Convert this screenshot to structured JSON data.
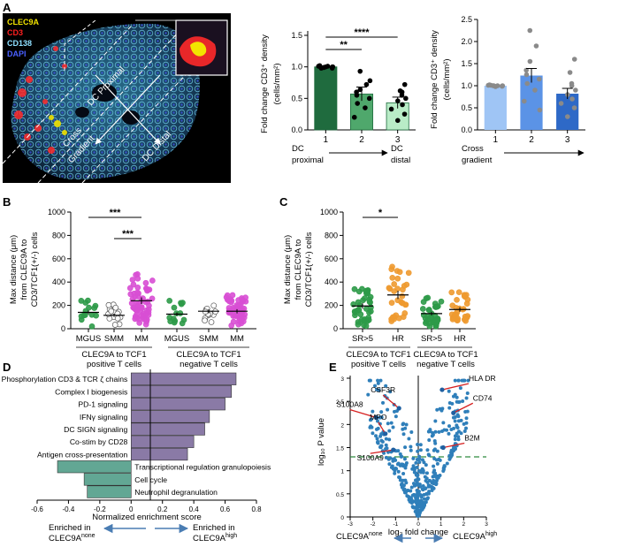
{
  "panel_labels": {
    "A": "A",
    "B": "B",
    "C": "C",
    "D": "D",
    "E": "E"
  },
  "micrograph": {
    "legend": [
      {
        "label": "CLEC9A",
        "color": "#f2e300"
      },
      {
        "label": "CD3",
        "color": "#ff2020"
      },
      {
        "label": "CD138",
        "color": "#8fe0ff"
      },
      {
        "label": "DAPI",
        "color": "#4a60ff"
      }
    ],
    "regions": {
      "proximal": "DC Proximal",
      "distal": "DC Distal",
      "cross": "Cross",
      "gradient": "Gradient"
    }
  },
  "colors": {
    "dark_green": "#1f6b3e",
    "mid_green": "#4fa86c",
    "light_green": "#b9ecc7",
    "light_blue": "#9fc5f5",
    "mid_blue": "#5b93e6",
    "dark_blue": "#2e69c7",
    "green_dot": "#2d9a48",
    "orange_dot": "#ee9a30",
    "magenta_dot": "#d84fd4",
    "purple_bar": "#8a7aa6",
    "teal_bar": "#62a794",
    "volcano_dot": "#2f7fba"
  },
  "chart_data": [
    {
      "id": "A-middle",
      "type": "bar",
      "ylabel": "Fold change CD3⁺ density",
      "ylabel2": "(cells/mm²)",
      "categories": [
        "1",
        "2",
        "3"
      ],
      "values": [
        1.0,
        0.57,
        0.43
      ],
      "sem": [
        0.0,
        0.11,
        0.09
      ],
      "ylim": [
        0,
        1.5
      ],
      "yticks": [
        "0.0",
        "0.5",
        "1.0",
        "1.5"
      ],
      "xnotes": {
        "left": "DC",
        "left2": "proximal",
        "right": "DC",
        "right2": "distal"
      },
      "points": [
        [
          0.98,
          1.0,
          1.01,
          0.99,
          1.0,
          1.02,
          0.99,
          1.0,
          1.01,
          0.98
        ],
        [
          0.93,
          0.72,
          0.64,
          0.6,
          0.55,
          0.5,
          0.42,
          0.35,
          0.2,
          0.78
        ],
        [
          0.72,
          0.62,
          0.55,
          0.5,
          0.46,
          0.4,
          0.33,
          0.25,
          0.15,
          0.6
        ]
      ],
      "significance": [
        {
          "from": 0,
          "to": 1,
          "label": "**"
        },
        {
          "from": 0,
          "to": 2,
          "label": "****"
        }
      ]
    },
    {
      "id": "A-right",
      "type": "bar",
      "ylabel": "Fold change CD3⁺ density",
      "ylabel2": "(cells/mm²)",
      "categories": [
        "1",
        "2",
        "3"
      ],
      "values": [
        1.0,
        1.23,
        0.82
      ],
      "sem": [
        0.0,
        0.16,
        0.12
      ],
      "ylim": [
        0,
        2.5
      ],
      "yticks": [
        "0.0",
        "0.5",
        "1.0",
        "1.5",
        "2.0",
        "2.5"
      ],
      "xnote": {
        "line1": "Cross",
        "line2": "gradient"
      },
      "points": [
        [
          0.99,
          1.0,
          1.01,
          1.0,
          0.99,
          1.02,
          1.0,
          0.98,
          1.0,
          1.01
        ],
        [
          2.25,
          1.9,
          1.55,
          1.35,
          1.25,
          1.15,
          1.05,
          0.9,
          0.65,
          0.45
        ],
        [
          1.6,
          1.3,
          1.05,
          0.9,
          0.8,
          0.7,
          0.6,
          0.5,
          0.3,
          1.0
        ]
      ]
    },
    {
      "id": "B",
      "type": "scatter",
      "ylabel": "Max distance (μm)",
      "ylabel2": "from CLEC9A to",
      "ylabel3": "CD3/TCF1(+/-) cells",
      "ylim": [
        0,
        1000
      ],
      "yticks": [
        "0",
        "200",
        "400",
        "600",
        "800",
        "1000"
      ],
      "categories": [
        "MGUS",
        "SMM",
        "MM",
        "MGUS",
        "SMM",
        "MM"
      ],
      "groups": [
        "CLEC9A to TCF1",
        "positive T cells",
        "CLEC9A to TCF1",
        "negative T cells"
      ],
      "means": [
        140,
        115,
        240,
        125,
        150,
        150
      ],
      "significance": [
        {
          "from": 0,
          "to": 2,
          "label": "***"
        },
        {
          "from": 1,
          "to": 2,
          "label": "***"
        }
      ]
    },
    {
      "id": "C",
      "type": "scatter",
      "ylabel": "Max distance (μm)",
      "ylabel2": "from CLEC9A to",
      "ylabel3": "CD3/TCF1(+/-) cells",
      "ylim": [
        0,
        1000
      ],
      "yticks": [
        "0",
        "200",
        "400",
        "600",
        "800",
        "1000"
      ],
      "categories": [
        "SR>5",
        "HR",
        "SR>5",
        "HR"
      ],
      "groups": [
        "CLEC9A to TCF1",
        "positive T cells",
        "CLEC9A to TCF1",
        "negative T cells"
      ],
      "means": [
        195,
        290,
        130,
        165
      ],
      "significance": [
        {
          "from": 0,
          "to": 1,
          "label": "*"
        }
      ]
    },
    {
      "id": "D",
      "type": "bar",
      "xlabel": "Normalized enrichment score",
      "xlim": [
        -0.6,
        0.8
      ],
      "xticks": [
        "-0.6",
        "-0.4",
        "-0.2",
        "0",
        "0.2",
        "0.4",
        "0.6",
        "0.8"
      ],
      "pathways": [
        {
          "label": "Phosphorylation CD3 & TCR ζ chains",
          "value": 0.67
        },
        {
          "label": "Complex I biogenesis",
          "value": 0.64
        },
        {
          "label": "PD-1 signaling",
          "value": 0.6
        },
        {
          "label": "IFNγ signaling",
          "value": 0.5
        },
        {
          "label": "DC SIGN signaling",
          "value": 0.47
        },
        {
          "label": "Co-stim by CD28",
          "value": 0.4
        },
        {
          "label": "Antigen cross-presentation",
          "value": 0.36
        },
        {
          "label": "Transcriptional regulation granulopoiesis",
          "value": -0.47
        },
        {
          "label": "Cell cycle",
          "value": -0.3
        },
        {
          "label": "Neutrophil degranulation",
          "value": -0.28
        }
      ],
      "left_note": "Enriched in",
      "left_note2": "CLEC9A",
      "left_sup": "none",
      "right_note": "Enriched in",
      "right_note2": "CLEC9A",
      "right_sup": "high"
    },
    {
      "id": "E",
      "type": "scatter",
      "xlabel": "log₂ fold change",
      "ylabel": "log₁₀ P value",
      "xlim": [
        -3,
        3
      ],
      "ylim": [
        0,
        3
      ],
      "xticks": [
        "-3",
        "-2",
        "-1",
        "0",
        "1",
        "2",
        "3"
      ],
      "yticks": [
        "0",
        "0.5",
        "1",
        "1.5",
        "2",
        "2.5",
        "3"
      ],
      "threshold": 1.3,
      "genes": [
        {
          "label": "HLA DR",
          "x": 1.05,
          "y": 2.75
        },
        {
          "label": "CD74",
          "x": 1.55,
          "y": 2.25
        },
        {
          "label": "B2M",
          "x": 1.1,
          "y": 1.5
        },
        {
          "label": "CSF3R",
          "x": -0.85,
          "y": 2.35
        },
        {
          "label": "S100A8",
          "x": -1.85,
          "y": 2.15
        },
        {
          "label": "MPO",
          "x": -1.45,
          "y": 1.8
        },
        {
          "label": "S100A9",
          "x": -1.1,
          "y": 1.45
        }
      ],
      "left_note": "CLEC9A",
      "left_sup": "none",
      "right_note": "CLEC9A",
      "right_sup": "high"
    }
  ]
}
